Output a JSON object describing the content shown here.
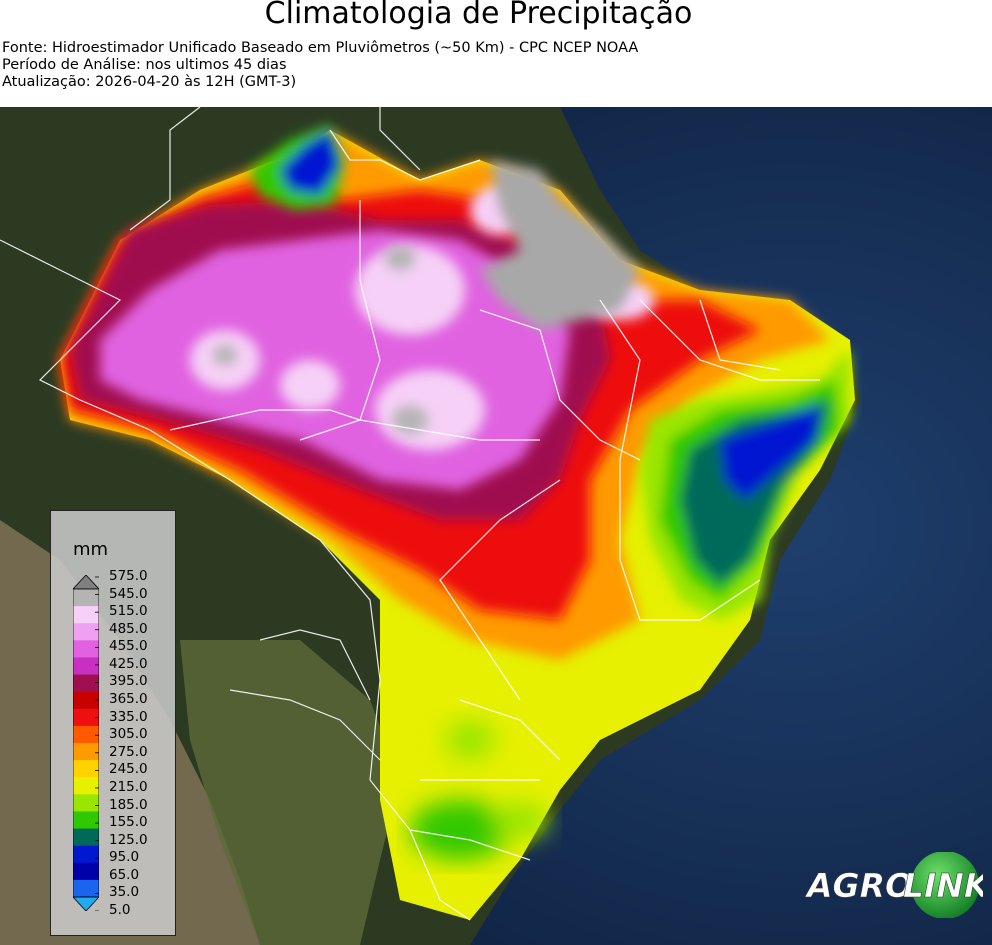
{
  "header": {
    "title": "Climatologia de Precipitação",
    "source": "Fonte: Hidroestimador Unificado Baseado em Pluviômetros (~50 Km) - CPC NCEP NOAA",
    "period": "Período de Análise: nos ultimos 45 dias",
    "updated": "Atualização: 2026-04-20 às 12H (GMT-3)"
  },
  "legend": {
    "unit": "mm",
    "levels": [
      "575.0",
      "545.0",
      "515.0",
      "485.0",
      "455.0",
      "425.0",
      "395.0",
      "365.0",
      "335.0",
      "305.0",
      "275.0",
      "245.0",
      "215.0",
      "185.0",
      "155.0",
      "125.0",
      "95.0",
      "65.0",
      "35.0",
      "5.0"
    ],
    "colors": [
      "#808080",
      "#b4b4b4",
      "#f6d0f6",
      "#f0a0f0",
      "#e062e0",
      "#c830c0",
      "#a01050",
      "#c80000",
      "#ee1010",
      "#ff5a00",
      "#ff9a00",
      "#ffd200",
      "#e6f000",
      "#9ae600",
      "#30c800",
      "#006a5a",
      "#0018d0",
      "#0000a8",
      "#1a64f0",
      "#22aaf0"
    ]
  },
  "logo": {
    "text_left": "AGRO",
    "text_right": "LINK"
  }
}
